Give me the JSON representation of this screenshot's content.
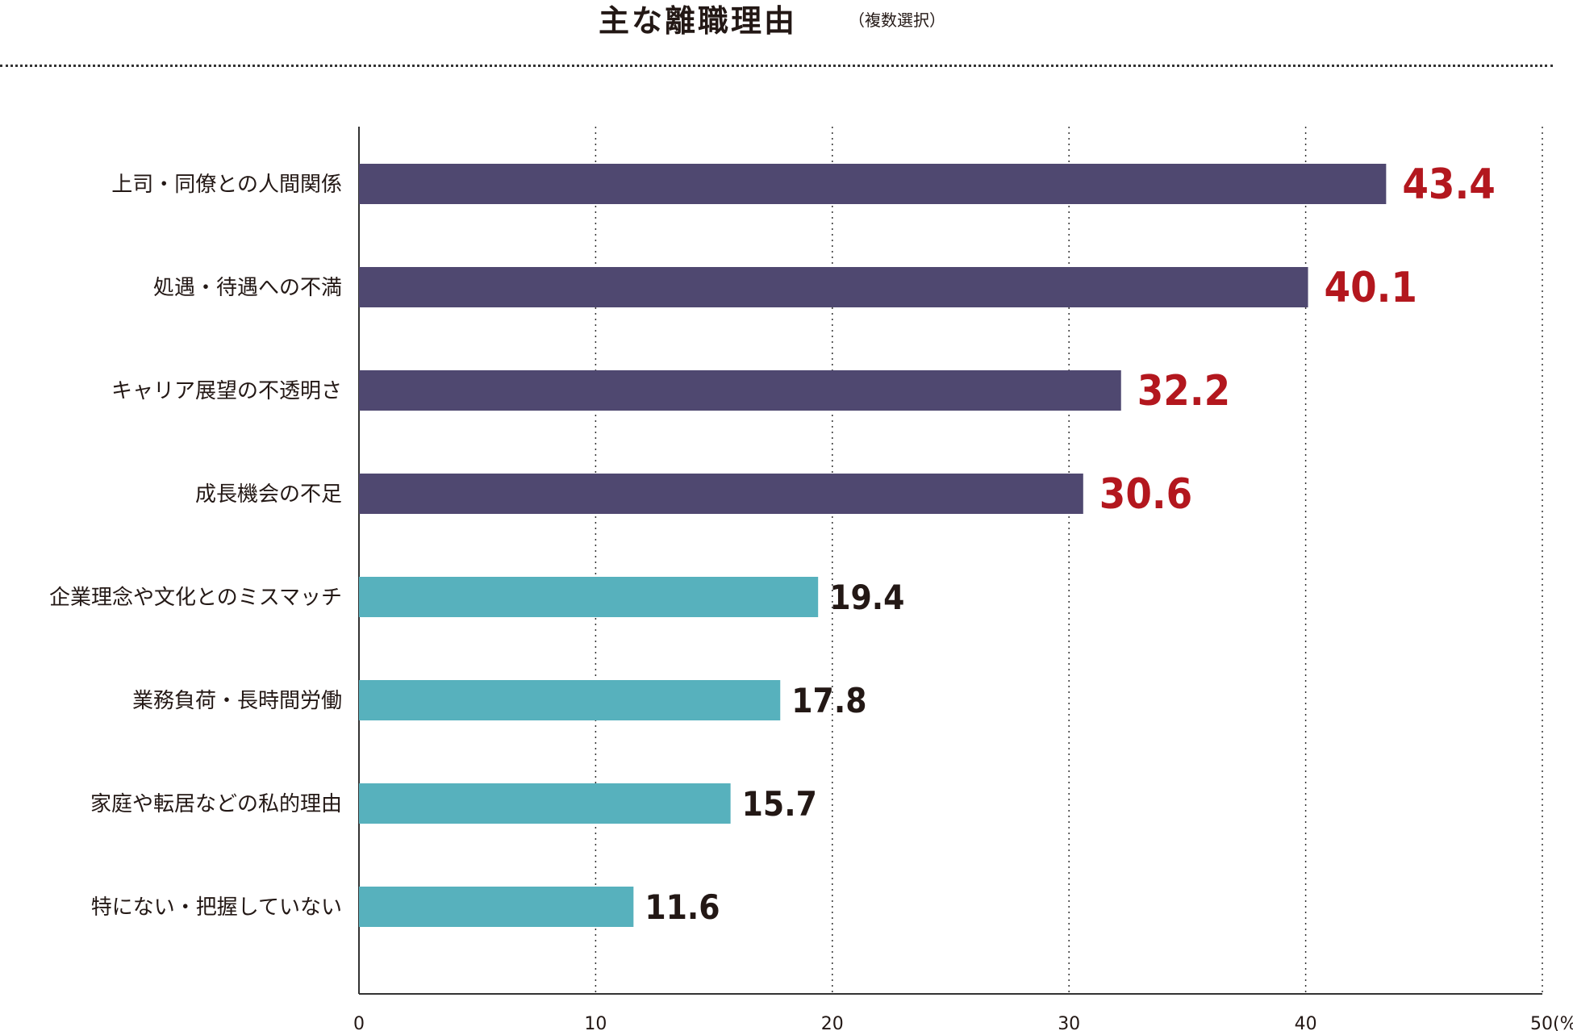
{
  "header": {
    "title": "主な離職理由",
    "subtitle": "（複数選択）"
  },
  "colors": {
    "top_bar": "#4f4870",
    "other_bar": "#57b1bd",
    "top_label": "#b3171e",
    "other_label": "#231815",
    "axis": "#333333"
  },
  "chart_data": {
    "type": "bar",
    "orientation": "horizontal",
    "title": "主な離職理由",
    "subtitle": "（複数選択）",
    "categories": [
      "上司・同僚との人間関係",
      "処遇・待遇への不満",
      "キャリア展望の不透明さ",
      "成長機会の不足",
      "企業理念や文化とのミスマッチ",
      "業務負荷・長時間労働",
      "家庭や転居などの私的理由",
      "特にない・把握していない"
    ],
    "values": [
      43.4,
      40.1,
      32.2,
      30.6,
      19.4,
      17.8,
      15.7,
      11.6
    ],
    "value_labels": [
      "43.4",
      "40.1",
      "32.2",
      "30.6",
      "19.4",
      "17.8",
      "15.7",
      "11.6"
    ],
    "highlight_top_n": 4,
    "xlim": [
      0,
      50
    ],
    "x_ticks": [
      "0",
      "10",
      "20",
      "30",
      "40",
      "50"
    ],
    "x_unit": "(%)",
    "grid": "vertical dotted"
  }
}
